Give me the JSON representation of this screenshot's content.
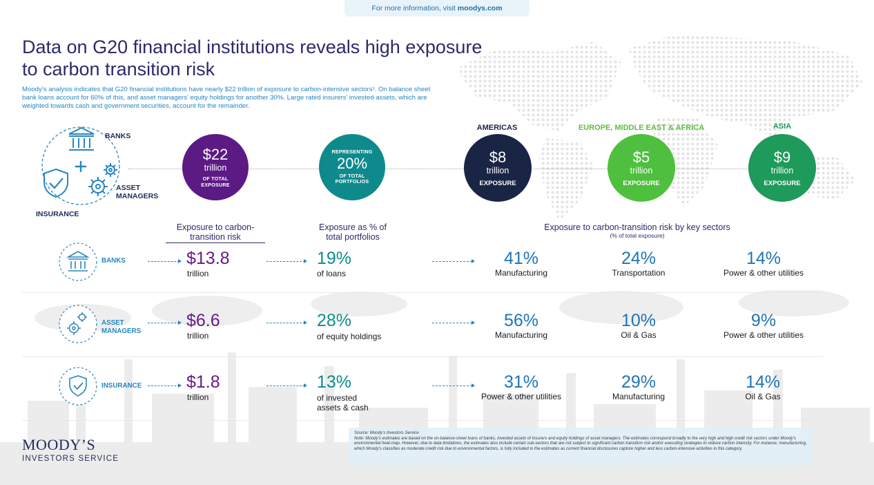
{
  "topbar": {
    "prefix": "For more information, visit ",
    "link": "moodys.com"
  },
  "title": "Data on G20 financial institutions reveals high exposure to carbon transition risk",
  "intro": "Moody’s analysis indicates that G20 financial institutions have nearly $22 trillion of exposure to carbon-intensive sectors¹. On balance sheet bank loans account for 60% of this, and asset managers’ equity holdings for another 30%. Large rated insurers’ invested assets, which are weighted towards cash and government securities, account for the remainder.",
  "cluster": {
    "banks": "BANKS",
    "asset_managers": "ASSET MANAGERS",
    "insurance": "INSURANCE"
  },
  "total": {
    "value": "$22",
    "unit": "trillion",
    "caption": "OF TOTAL EXPOSURE",
    "color": "#5c1a84"
  },
  "share": {
    "top": "REPRESENTING",
    "value": "20%",
    "caption": "OF TOTAL PORTFOLIOS",
    "color": "#0f8a8c"
  },
  "regions": [
    {
      "name": "AMERICAS",
      "value": "$8",
      "unit": "trillion",
      "caption": "EXPOSURE",
      "color": "#1a2545",
      "label_color": "#1a2545"
    },
    {
      "name": "EUROPE, MIDDLE EAST & AFRICA",
      "value": "$5",
      "unit": "trillion",
      "caption": "EXPOSURE",
      "color": "#4fbf3f",
      "label_color": "#5cbf3a"
    },
    {
      "name": "ASIA",
      "value": "$9",
      "unit": "trillion",
      "caption": "EXPOSURE",
      "color": "#1e9a5a",
      "label_color": "#1e9a5a"
    }
  ],
  "headers": {
    "col1": "Exposure to carbon-transition risk",
    "col2": "Exposure as % of total portfolios",
    "col3": "Exposure to carbon-transition risk by key sectors",
    "col3_sub": "(% of total exposure)"
  },
  "rows": [
    {
      "label": "BANKS",
      "exposure": "$13.8",
      "exposure_unit": "trillion",
      "pct": "19%",
      "pct_label": "of loans",
      "sectors": [
        {
          "pct": "41%",
          "name": "Manufacturing"
        },
        {
          "pct": "24%",
          "name": "Transportation"
        },
        {
          "pct": "14%",
          "name": "Power & other utilities"
        }
      ]
    },
    {
      "label": "ASSET MANAGERS",
      "exposure": "$6.6",
      "exposure_unit": "trillion",
      "pct": "28%",
      "pct_label": "of equity holdings",
      "sectors": [
        {
          "pct": "56%",
          "name": "Manufacturing"
        },
        {
          "pct": "10%",
          "name": "Oil & Gas"
        },
        {
          "pct": "9%",
          "name": "Power & other utilities"
        }
      ]
    },
    {
      "label": "INSURANCE",
      "exposure": "$1.8",
      "exposure_unit": "trillion",
      "pct": "13%",
      "pct_label": "of invested assets & cash",
      "sectors": [
        {
          "pct": "31%",
          "name": "Power & other utilities"
        },
        {
          "pct": "29%",
          "name": "Manufacturing"
        },
        {
          "pct": "14%",
          "name": "Oil & Gas"
        }
      ]
    }
  ],
  "note": {
    "source": "Source: Moody’s Investors Service",
    "text": "Note: Moody’s estimates are based on the on-balance-sheet loans of banks, invested assets of insurers and equity holdings of asset managers. The estimates correspond broadly to the very high and high credit risk sectors under Moody’s environmental heat-map. However, due to data limitations, the estimates also include certain sub-sectors that are not subject to significant carbon transition risk and/or executing strategies to reduce carbon intensity. For instance, manufacturing, which Moody’s classifies as moderate credit risk due to environmental factors, is fully included in the estimates as current financial disclosures capture higher and less carbon-intensive activities in this category."
  },
  "logo": {
    "main": "MOODY’S",
    "sub": "INVESTORS SERVICE"
  }
}
